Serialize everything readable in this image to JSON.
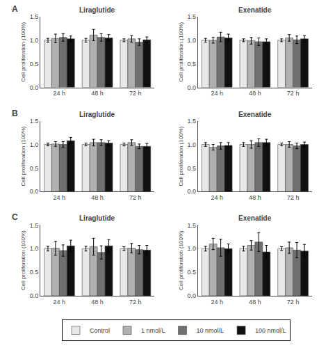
{
  "chart_data": [
    {
      "type": "bar",
      "title": "Liraglutide",
      "annotations": [
        {
          "text": "A"
        }
      ],
      "categories": [
        "24 h",
        "48 h",
        "72 h"
      ],
      "ylabel": "Cell proliferation (100%)",
      "ylim": [
        0,
        1.5
      ],
      "yticks": [
        {
          "value": 0,
          "label": "0.0"
        },
        0.5,
        {
          "value": 1,
          "label": "1.0"
        },
        1.5
      ],
      "grid": false,
      "legend": "bottom",
      "series": [
        {
          "name": "Control",
          "color": "#e8e8e8",
          "values": [
            1.0,
            1.0,
            1.0
          ],
          "errors": [
            0.04,
            0.04,
            0.03
          ]
        },
        {
          "name": "1 nmol/L",
          "color": "#b0b0b0",
          "values": [
            1.04,
            1.11,
            1.03
          ],
          "errors": [
            0.09,
            0.12,
            0.07
          ]
        },
        {
          "name": "10 nmol/L",
          "color": "#707070",
          "values": [
            1.06,
            1.06,
            0.96
          ],
          "errors": [
            0.08,
            0.08,
            0.07
          ]
        },
        {
          "name": "100 nmol/L",
          "color": "#101010",
          "values": [
            1.03,
            1.05,
            1.01
          ],
          "errors": [
            0.06,
            0.07,
            0.06
          ]
        }
      ]
    },
    {
      "type": "bar",
      "title": "Exenatide",
      "categories": [
        "24 h",
        "48 h",
        "72 h"
      ],
      "ylabel": "Cell proliferation (100%)",
      "ylim": [
        0,
        1.5
      ],
      "yticks": [
        {
          "value": 0,
          "label": "0.0"
        },
        0.5,
        {
          "value": 1,
          "label": "1.0"
        },
        1.5
      ],
      "grid": false,
      "legend": "bottom",
      "series": [
        {
          "name": "Control",
          "color": "#e8e8e8",
          "values": [
            1.0,
            1.0,
            1.0
          ],
          "errors": [
            0.04,
            0.03,
            0.03
          ]
        },
        {
          "name": "1 nmol/L",
          "color": "#b0b0b0",
          "values": [
            1.0,
            0.99,
            1.05
          ],
          "errors": [
            0.06,
            0.07,
            0.07
          ]
        },
        {
          "name": "10 nmol/L",
          "color": "#707070",
          "values": [
            1.07,
            0.97,
            1.01
          ],
          "errors": [
            0.1,
            0.08,
            0.08
          ]
        },
        {
          "name": "100 nmol/L",
          "color": "#101010",
          "values": [
            1.05,
            0.97,
            1.03
          ],
          "errors": [
            0.08,
            0.06,
            0.07
          ]
        }
      ]
    },
    {
      "type": "bar",
      "title": "Liraglutide",
      "annotations": [
        {
          "text": "B"
        }
      ],
      "categories": [
        "24 h",
        "48 h",
        "72 h"
      ],
      "ylabel": "Cell proliferation (100%)",
      "ylim": [
        0,
        1.5
      ],
      "yticks": [
        {
          "value": 0,
          "label": "0.0"
        },
        0.5,
        {
          "value": 1,
          "label": "1.0"
        },
        1.5
      ],
      "grid": false,
      "legend": "bottom",
      "series": [
        {
          "name": "Control",
          "color": "#e8e8e8",
          "values": [
            1.0,
            1.0,
            1.0
          ],
          "errors": [
            0.03,
            0.03,
            0.03
          ]
        },
        {
          "name": "1 nmol/L",
          "color": "#b0b0b0",
          "values": [
            1.01,
            1.04,
            1.04
          ],
          "errors": [
            0.05,
            0.07,
            0.06
          ]
        },
        {
          "name": "10 nmol/L",
          "color": "#707070",
          "values": [
            1.0,
            1.04,
            0.96
          ],
          "errors": [
            0.06,
            0.06,
            0.05
          ]
        },
        {
          "name": "100 nmol/L",
          "color": "#101010",
          "values": [
            1.08,
            1.03,
            0.96
          ],
          "errors": [
            0.07,
            0.05,
            0.06
          ]
        }
      ]
    },
    {
      "type": "bar",
      "title": "Exenatide",
      "categories": [
        "24 h",
        "48 h",
        "72 h"
      ],
      "ylabel": "Cell proliferation (100%)",
      "ylim": [
        0,
        1.5
      ],
      "yticks": [
        {
          "value": 0,
          "label": "0.0"
        },
        0.5,
        {
          "value": 1,
          "label": "1.0"
        },
        1.5
      ],
      "grid": false,
      "legend": "bottom",
      "series": [
        {
          "name": "Control",
          "color": "#e8e8e8",
          "values": [
            1.0,
            1.0,
            1.0
          ],
          "errors": [
            0.04,
            0.04,
            0.03
          ]
        },
        {
          "name": "1 nmol/L",
          "color": "#b0b0b0",
          "values": [
            0.94,
            1.0,
            1.0
          ],
          "errors": [
            0.06,
            0.08,
            0.06
          ]
        },
        {
          "name": "10 nmol/L",
          "color": "#707070",
          "values": [
            0.97,
            1.04,
            0.97
          ],
          "errors": [
            0.07,
            0.08,
            0.06
          ]
        },
        {
          "name": "100 nmol/L",
          "color": "#101010",
          "values": [
            0.98,
            1.04,
            1.0
          ],
          "errors": [
            0.06,
            0.07,
            0.05
          ]
        }
      ]
    },
    {
      "type": "bar",
      "title": "Liraglutide",
      "annotations": [
        {
          "text": "C"
        }
      ],
      "categories": [
        "24 h",
        "48 h",
        "72 h"
      ],
      "ylabel": "Cell proliferation (100%)",
      "ylim": [
        0,
        1.5
      ],
      "yticks": [
        {
          "value": 0,
          "label": "0.0"
        },
        0.5,
        {
          "value": 1,
          "label": "1.0"
        },
        1.5
      ],
      "grid": false,
      "legend": "bottom",
      "series": [
        {
          "name": "Control",
          "color": "#e8e8e8",
          "values": [
            1.0,
            1.0,
            1.0
          ],
          "errors": [
            0.05,
            0.05,
            0.04
          ]
        },
        {
          "name": "1 nmol/L",
          "color": "#b0b0b0",
          "values": [
            1.01,
            1.04,
            1.01
          ],
          "errors": [
            0.15,
            0.18,
            0.1
          ]
        },
        {
          "name": "10 nmol/L",
          "color": "#707070",
          "values": [
            0.96,
            0.92,
            0.98
          ],
          "errors": [
            0.12,
            0.14,
            0.09
          ]
        },
        {
          "name": "100 nmol/L",
          "color": "#101010",
          "values": [
            1.06,
            1.06,
            0.97
          ],
          "errors": [
            0.12,
            0.13,
            0.1
          ]
        }
      ]
    },
    {
      "type": "bar",
      "title": "Exenatide",
      "categories": [
        "24 h",
        "48 h",
        "72 h"
      ],
      "ylabel": "Cell proliferation (100%)",
      "ylim": [
        0,
        1.5
      ],
      "yticks": [
        {
          "value": 0,
          "label": "0.0"
        },
        0.5,
        {
          "value": 1,
          "label": "1.0"
        },
        1.5
      ],
      "grid": false,
      "legend": "bottom",
      "series": [
        {
          "name": "Control",
          "color": "#e8e8e8",
          "values": [
            1.0,
            1.0,
            1.0
          ],
          "errors": [
            0.05,
            0.05,
            0.04
          ]
        },
        {
          "name": "1 nmol/L",
          "color": "#b0b0b0",
          "values": [
            1.1,
            1.07,
            1.02
          ],
          "errors": [
            0.12,
            0.1,
            0.12
          ]
        },
        {
          "name": "10 nmol/L",
          "color": "#707070",
          "values": [
            1.02,
            1.14,
            0.97
          ],
          "errors": [
            0.18,
            0.2,
            0.16
          ]
        },
        {
          "name": "100 nmol/L",
          "color": "#101010",
          "values": [
            1.0,
            0.93,
            0.95
          ],
          "errors": [
            0.1,
            0.14,
            0.14
          ]
        }
      ]
    }
  ]
}
